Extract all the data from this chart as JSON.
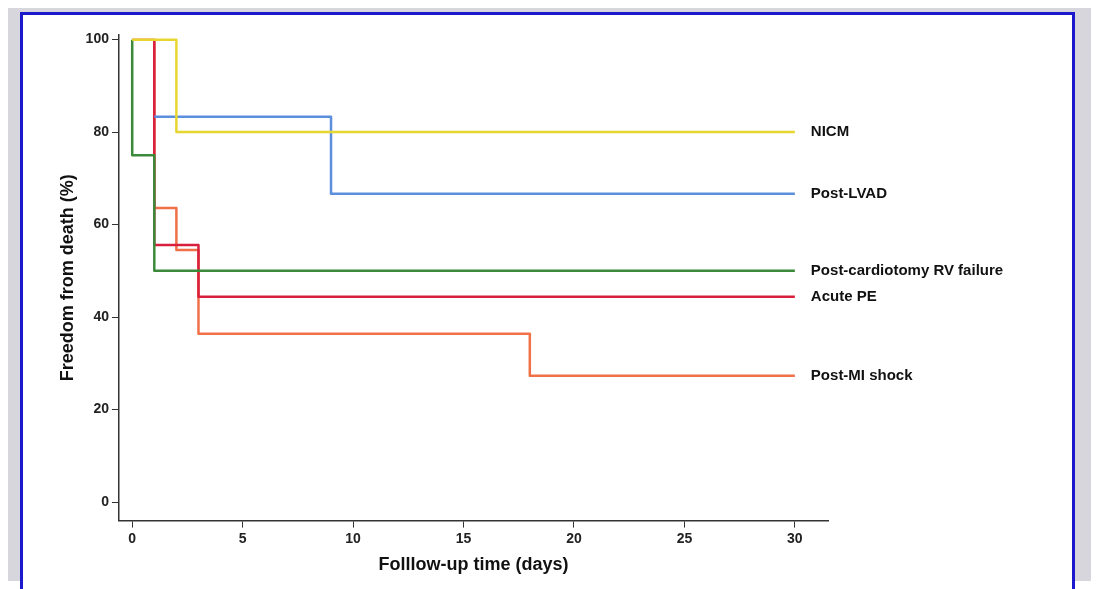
{
  "chart_data": {
    "type": "step",
    "xlabel": "Folllow-up time (days)",
    "ylabel": "Freedom from death (%)",
    "xlim": [
      -0.6,
      31.5
    ],
    "xticks": [
      0,
      5,
      10,
      15,
      20,
      25,
      30
    ],
    "ylim": [
      -4,
      101
    ],
    "yticks": [
      0,
      20,
      40,
      60,
      80,
      100
    ],
    "grid": false,
    "legend": false,
    "marker": "none",
    "line_style": "solid",
    "series": [
      {
        "name": "NICM",
        "color": "#e8d630",
        "x": [
          0,
          2,
          30
        ],
        "values": [
          100,
          80,
          80
        ]
      },
      {
        "name": "Post-LVAD",
        "color": "#5b8fdc",
        "x": [
          1,
          9,
          30
        ],
        "values": [
          83.3,
          66.7,
          66.7
        ]
      },
      {
        "name": "Post-cardiotomy RV failure",
        "color": "#3a8a3a",
        "x": [
          0,
          0,
          1,
          30
        ],
        "values": [
          100,
          75,
          50,
          50
        ]
      },
      {
        "name": "Acute PE",
        "color": "#d8203c",
        "x": [
          1,
          1,
          3,
          30
        ],
        "values": [
          100,
          55.6,
          44.4,
          44.4
        ]
      },
      {
        "name": "Post-MI shock",
        "color": "#f07048",
        "x": [
          0,
          1,
          2,
          3,
          18,
          30
        ],
        "values": [
          100,
          63.6,
          54.5,
          36.4,
          27.3,
          27.3
        ]
      }
    ]
  }
}
